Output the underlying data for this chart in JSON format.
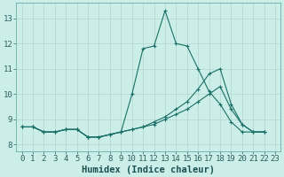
{
  "background_color": "#cceee8",
  "grid_color": "#b8d8d4",
  "line_color": "#1a7068",
  "xlabel": "Humidex (Indice chaleur)",
  "xlabel_fontsize": 7.5,
  "tick_fontsize": 6.5,
  "xlim": [
    -0.5,
    23.5
  ],
  "ylim": [
    7.75,
    13.6
  ],
  "yticks": [
    8,
    9,
    10,
    11,
    12,
    13
  ],
  "xticks": [
    0,
    1,
    2,
    3,
    4,
    5,
    6,
    7,
    8,
    9,
    10,
    11,
    12,
    13,
    14,
    15,
    16,
    17,
    18,
    19,
    20,
    21,
    22,
    23
  ],
  "series": [
    {
      "x": [
        0,
        1,
        2,
        3,
        4,
        5,
        6,
        7,
        8,
        9,
        10,
        11,
        12,
        13,
        14,
        15,
        16,
        17,
        18,
        19,
        20,
        21,
        22
      ],
      "y": [
        8.7,
        8.7,
        8.5,
        8.5,
        8.6,
        8.6,
        8.3,
        8.3,
        8.4,
        8.5,
        10.0,
        11.8,
        11.9,
        13.3,
        12.0,
        11.9,
        11.0,
        10.1,
        9.6,
        8.9,
        8.5,
        8.5,
        8.5
      ]
    },
    {
      "x": [
        0,
        1,
        2,
        3,
        4,
        5,
        6,
        7,
        8,
        9,
        10,
        11,
        12,
        13,
        14,
        15,
        16,
        17,
        18,
        19,
        20,
        21,
        22
      ],
      "y": [
        8.7,
        8.7,
        8.5,
        8.5,
        8.6,
        8.6,
        8.3,
        8.3,
        8.4,
        8.5,
        8.6,
        8.7,
        8.9,
        9.1,
        9.4,
        9.7,
        10.2,
        10.8,
        11.0,
        9.6,
        8.8,
        8.5,
        8.5
      ]
    },
    {
      "x": [
        0,
        1,
        2,
        3,
        4,
        5,
        6,
        7,
        8,
        9,
        10,
        11,
        12,
        13,
        14,
        15,
        16,
        17,
        18,
        19,
        20,
        21,
        22
      ],
      "y": [
        8.7,
        8.7,
        8.5,
        8.5,
        8.6,
        8.6,
        8.3,
        8.3,
        8.4,
        8.5,
        8.6,
        8.7,
        8.8,
        9.0,
        9.2,
        9.4,
        9.7,
        10.0,
        10.3,
        9.4,
        8.8,
        8.5,
        8.5
      ]
    }
  ]
}
